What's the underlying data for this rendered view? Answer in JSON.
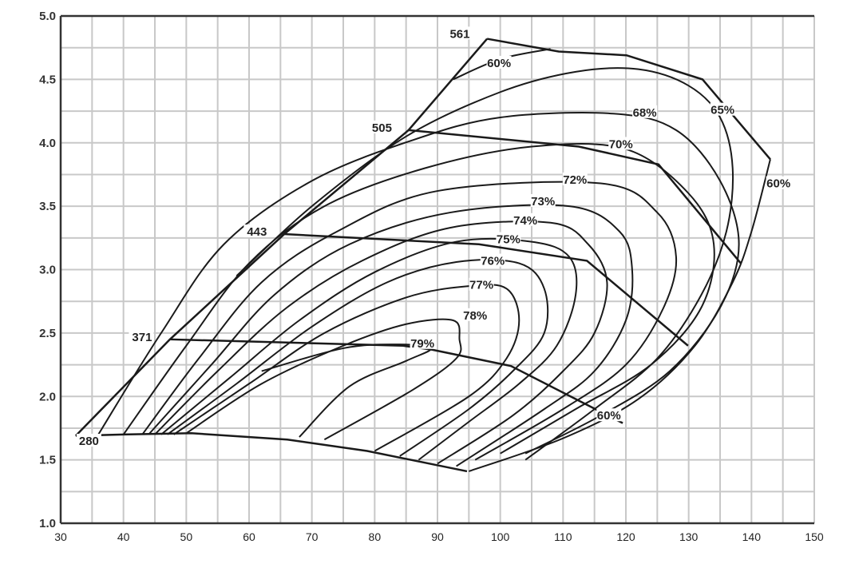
{
  "chart_data": {
    "type": "line",
    "title": "",
    "xlabel": "",
    "ylabel": "",
    "xlim": [
      30,
      150
    ],
    "ylim": [
      1.0,
      5.0
    ],
    "x_ticks": [
      "30",
      "40",
      "50",
      "60",
      "70",
      "80",
      "90",
      "100",
      "110",
      "120",
      "130",
      "140",
      "150"
    ],
    "y_ticks": [
      "1.0",
      "1.5",
      "2.0",
      "2.5",
      "3.0",
      "3.5",
      "4.0",
      "4.5",
      "5.0"
    ],
    "grid": true,
    "grid_minor_x": 5,
    "grid_minor_y": 0.25,
    "colors": {
      "line": "#1a1a1a",
      "grid": "#c8c8c8",
      "axis": "#333333"
    },
    "surge_line": [
      [
        32.4,
        1.69
      ],
      [
        47.4,
        2.45
      ],
      [
        65.6,
        3.28
      ],
      [
        85.4,
        4.1
      ],
      [
        97.9,
        4.82
      ]
    ],
    "speed_lines": [
      {
        "label": "280",
        "label_at": [
          34.5,
          1.63
        ],
        "points": [
          [
            32.4,
            1.69
          ],
          [
            40,
            1.7
          ],
          [
            50.8,
            1.71
          ],
          [
            66.1,
            1.66
          ],
          [
            78.8,
            1.57
          ],
          [
            94.7,
            1.41
          ]
        ]
      },
      {
        "label": "371",
        "label_at": [
          44.8,
          2.45
        ],
        "points": [
          [
            47.4,
            2.45
          ],
          [
            84.5,
            2.4
          ],
          [
            89,
            2.37
          ],
          [
            101.7,
            2.24
          ],
          [
            119.5,
            1.79
          ]
        ]
      },
      {
        "label": "443",
        "label_at": [
          63.1,
          3.28
        ],
        "points": [
          [
            65.6,
            3.28
          ],
          [
            96.6,
            3.2
          ],
          [
            113.8,
            3.07
          ],
          [
            129.9,
            2.4
          ]
        ]
      },
      {
        "label": "505",
        "label_at": [
          83.0,
          4.1
        ],
        "points": [
          [
            85.4,
            4.1
          ],
          [
            112.5,
            3.97
          ],
          [
            125.2,
            3.83
          ],
          [
            138.3,
            3.05
          ]
        ]
      },
      {
        "label": "561",
        "label_at": [
          95.4,
          4.84
        ],
        "points": [
          [
            97.9,
            4.82
          ],
          [
            109.3,
            4.72
          ],
          [
            120.1,
            4.69
          ],
          [
            132.2,
            4.5
          ],
          [
            143,
            3.87
          ]
        ]
      }
    ],
    "efficiency_contours": [
      {
        "label": "79%",
        "label_at": [
          87.6,
          2.4
        ],
        "points": [
          [
            62,
            2.2
          ],
          [
            75,
            2.38
          ],
          [
            84,
            2.41
          ],
          [
            89,
            2.38
          ],
          [
            85,
            2.28
          ],
          [
            76,
            2.08
          ],
          [
            68,
            1.68
          ]
        ]
      },
      {
        "label": "78%",
        "label_at": [
          96.0,
          2.62
        ],
        "points": [
          [
            50,
            1.71
          ],
          [
            62,
            2.1
          ],
          [
            75,
            2.4
          ],
          [
            85,
            2.57
          ],
          [
            92.5,
            2.6
          ],
          [
            93.5,
            2.45
          ],
          [
            93,
            2.3
          ],
          [
            86,
            2.05
          ],
          [
            72,
            1.66
          ]
        ]
      },
      {
        "label": "77%",
        "label_at": [
          97.0,
          2.86
        ],
        "points": [
          [
            48,
            1.7
          ],
          [
            60,
            2.1
          ],
          [
            72,
            2.5
          ],
          [
            85,
            2.78
          ],
          [
            95,
            2.87
          ],
          [
            101,
            2.85
          ],
          [
            103,
            2.6
          ],
          [
            101,
            2.3
          ],
          [
            95,
            2.0
          ],
          [
            80,
            1.57
          ]
        ]
      },
      {
        "label": "76%",
        "label_at": [
          98.8,
          3.05
        ],
        "points": [
          [
            47,
            1.7
          ],
          [
            58,
            2.1
          ],
          [
            70,
            2.55
          ],
          [
            82,
            2.9
          ],
          [
            93,
            3.06
          ],
          [
            103,
            3.05
          ],
          [
            107,
            2.85
          ],
          [
            107,
            2.5
          ],
          [
            102,
            2.2
          ],
          [
            95,
            1.9
          ],
          [
            84,
            1.53
          ]
        ]
      },
      {
        "label": "75%",
        "label_at": [
          101.3,
          3.22
        ],
        "points": [
          [
            46,
            1.7
          ],
          [
            57,
            2.15
          ],
          [
            68,
            2.6
          ],
          [
            80,
            2.98
          ],
          [
            93,
            3.22
          ],
          [
            105,
            3.22
          ],
          [
            111,
            3.1
          ],
          [
            112,
            2.8
          ],
          [
            109,
            2.4
          ],
          [
            103,
            2.1
          ],
          [
            95,
            1.8
          ],
          [
            87,
            1.5
          ]
        ]
      },
      {
        "label": "74%",
        "label_at": [
          104.0,
          3.37
        ],
        "points": [
          [
            45,
            1.7
          ],
          [
            55,
            2.2
          ],
          [
            66,
            2.7
          ],
          [
            78,
            3.07
          ],
          [
            92,
            3.33
          ],
          [
            108,
            3.37
          ],
          [
            114,
            3.2
          ],
          [
            117,
            2.9
          ],
          [
            115,
            2.5
          ],
          [
            110,
            2.2
          ],
          [
            102,
            1.85
          ],
          [
            90,
            1.47
          ]
        ]
      },
      {
        "label": "73%",
        "label_at": [
          106.8,
          3.52
        ],
        "points": [
          [
            44,
            1.7
          ],
          [
            54,
            2.25
          ],
          [
            64,
            2.8
          ],
          [
            76,
            3.2
          ],
          [
            92,
            3.45
          ],
          [
            111,
            3.5
          ],
          [
            119,
            3.3
          ],
          [
            121,
            3.0
          ],
          [
            120,
            2.6
          ],
          [
            115,
            2.2
          ],
          [
            107,
            1.9
          ],
          [
            93,
            1.45
          ]
        ]
      },
      {
        "label": "72%",
        "label_at": [
          111.9,
          3.69
        ],
        "points": [
          [
            43,
            1.7
          ],
          [
            52,
            2.3
          ],
          [
            62,
            2.9
          ],
          [
            74,
            3.3
          ],
          [
            90,
            3.62
          ],
          [
            116,
            3.68
          ],
          [
            125,
            3.45
          ],
          [
            128,
            3.1
          ],
          [
            126,
            2.7
          ],
          [
            120,
            2.25
          ],
          [
            110,
            1.9
          ],
          [
            96,
            1.5
          ]
        ]
      },
      {
        "label": "70%",
        "label_at": [
          119.2,
          3.97
        ],
        "points": [
          [
            40,
            1.7
          ],
          [
            50,
            2.4
          ],
          [
            60,
            3.05
          ],
          [
            72,
            3.5
          ],
          [
            88,
            3.8
          ],
          [
            105,
            3.97
          ],
          [
            120,
            3.95
          ],
          [
            130,
            3.6
          ],
          [
            134,
            3.2
          ],
          [
            132,
            2.7
          ],
          [
            124,
            2.25
          ],
          [
            112,
            1.9
          ],
          [
            100,
            1.55
          ]
        ]
      },
      {
        "label": "68%",
        "label_at": [
          123.0,
          4.22
        ],
        "points": [
          [
            36,
            1.7
          ],
          [
            46,
            2.5
          ],
          [
            56,
            3.2
          ],
          [
            70,
            3.7
          ],
          [
            86,
            4.02
          ],
          [
            100,
            4.2
          ],
          [
            118,
            4.23
          ],
          [
            128,
            4.1
          ],
          [
            135,
            3.7
          ],
          [
            138,
            3.2
          ],
          [
            135,
            2.7
          ],
          [
            127,
            2.2
          ],
          [
            116,
            1.85
          ],
          [
            104,
            1.55
          ]
        ]
      },
      {
        "label": "65%",
        "label_at": [
          135.4,
          4.24
        ],
        "points": [
          [
            58,
            2.95
          ],
          [
            70,
            3.5
          ],
          [
            85,
            4.05
          ],
          [
            100,
            4.4
          ],
          [
            112,
            4.56
          ],
          [
            122,
            4.58
          ],
          [
            130,
            4.45
          ],
          [
            135,
            4.2
          ],
          [
            137,
            3.8
          ],
          [
            136,
            3.3
          ],
          [
            132,
            2.8
          ],
          [
            125,
            2.3
          ],
          [
            115,
            1.9
          ],
          [
            104,
            1.5
          ]
        ]
      },
      {
        "label": "60%",
        "label_at": [
          99.8,
          4.61
        ],
        "points": [
          [
            92.5,
            4.5
          ],
          [
            100,
            4.66
          ],
          [
            108,
            4.74
          ]
        ]
      },
      {
        "label": "60%",
        "label_at": [
          144.3,
          3.66
        ],
        "points": [
          [
            143,
            3.87
          ],
          [
            140,
            3.3
          ],
          [
            137,
            2.9
          ],
          [
            131,
            2.4
          ],
          [
            122,
            1.98
          ],
          [
            110,
            1.67
          ],
          [
            95,
            1.41
          ]
        ]
      },
      {
        "label": "60%",
        "label_at": [
          117.3,
          1.83
        ],
        "points": []
      }
    ]
  }
}
